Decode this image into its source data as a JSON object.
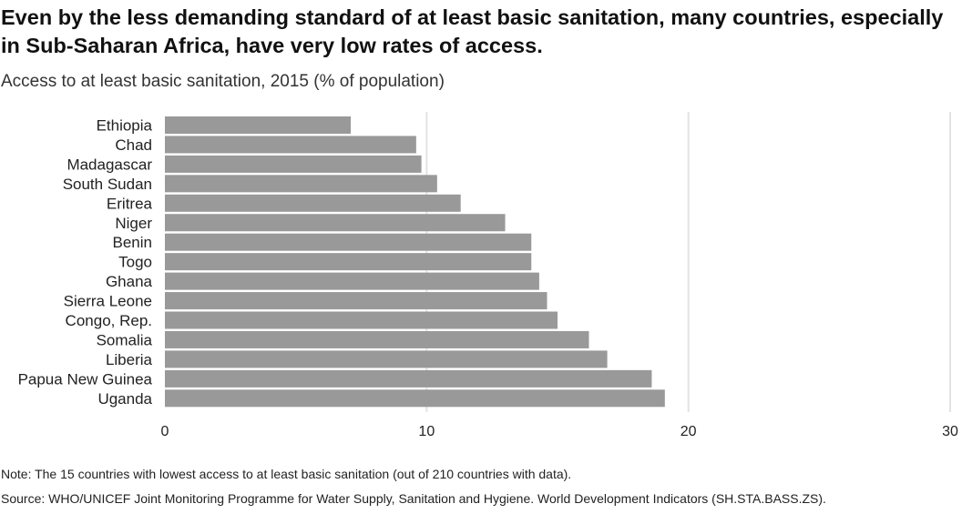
{
  "title": "Even by the less demanding standard of at least basic sanitation, many countries, especially in Sub-Saharan Africa, have very low rates of access.",
  "subtitle": "Access to at least basic sanitation, 2015 (% of population)",
  "note": "Note: The 15 countries with lowest access to at least basic sanitation (out of 210 countries with data).",
  "source": "Source: WHO/UNICEF Joint Monitoring Programme for Water Supply, Sanitation and Hygiene. World Development Indicators (SH.STA.BASS.ZS).",
  "colors": {
    "bar": "#999999",
    "grid": "#e3e3e3"
  },
  "chart_data": {
    "type": "bar",
    "orientation": "horizontal",
    "categories": [
      "Ethiopia",
      "Chad",
      "Madagascar",
      "South Sudan",
      "Eritrea",
      "Niger",
      "Benin",
      "Togo",
      "Ghana",
      "Sierra Leone",
      "Congo, Rep.",
      "Somalia",
      "Liberia",
      "Papua New Guinea",
      "Uganda"
    ],
    "values": [
      7.1,
      9.6,
      9.8,
      10.4,
      11.3,
      13.0,
      14.0,
      14.0,
      14.3,
      14.6,
      15.0,
      16.2,
      16.9,
      18.6,
      19.1
    ],
    "xlim": [
      0,
      30
    ],
    "xticks": [
      0,
      10,
      20,
      30
    ],
    "grid": true
  }
}
